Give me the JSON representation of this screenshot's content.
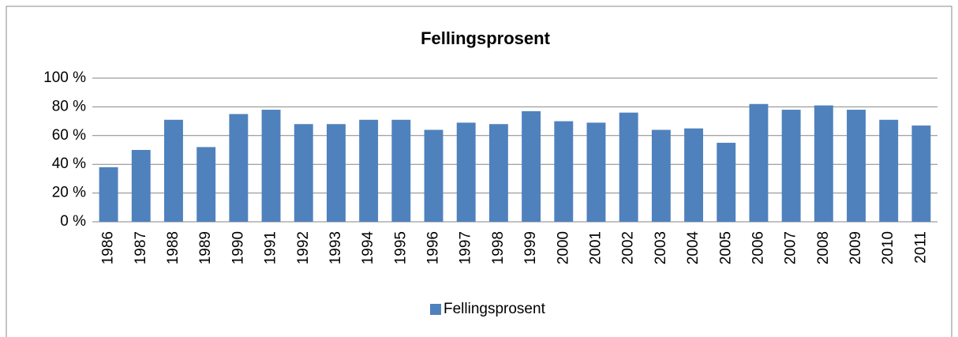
{
  "chart_data": {
    "type": "bar",
    "title": "Fellingsprosent",
    "categories": [
      "1986",
      "1987",
      "1988",
      "1989",
      "1990",
      "1991",
      "1992",
      "1993",
      "1994",
      "1995",
      "1996",
      "1997",
      "1998",
      "1999",
      "2000",
      "2001",
      "2002",
      "2003",
      "2004",
      "2005",
      "2006",
      "2007",
      "2008",
      "2009",
      "2010",
      "2011"
    ],
    "series": [
      {
        "name": "Fellingsprosent",
        "color": "#4f81bd",
        "values": [
          38,
          50,
          71,
          52,
          75,
          78,
          68,
          68,
          71,
          71,
          64,
          69,
          68,
          77,
          70,
          69,
          76,
          64,
          65,
          55,
          82,
          78,
          81,
          78,
          71,
          67
        ]
      }
    ],
    "ylim": [
      0,
      100
    ],
    "yticks": [
      {
        "value": 0,
        "label": "0 %"
      },
      {
        "value": 20,
        "label": "20 %"
      },
      {
        "value": 40,
        "label": "40 %"
      },
      {
        "value": 60,
        "label": "60 %"
      },
      {
        "value": 80,
        "label": "80 %"
      },
      {
        "value": 100,
        "label": "100 %"
      }
    ],
    "grid": true,
    "legend": "bottom"
  }
}
